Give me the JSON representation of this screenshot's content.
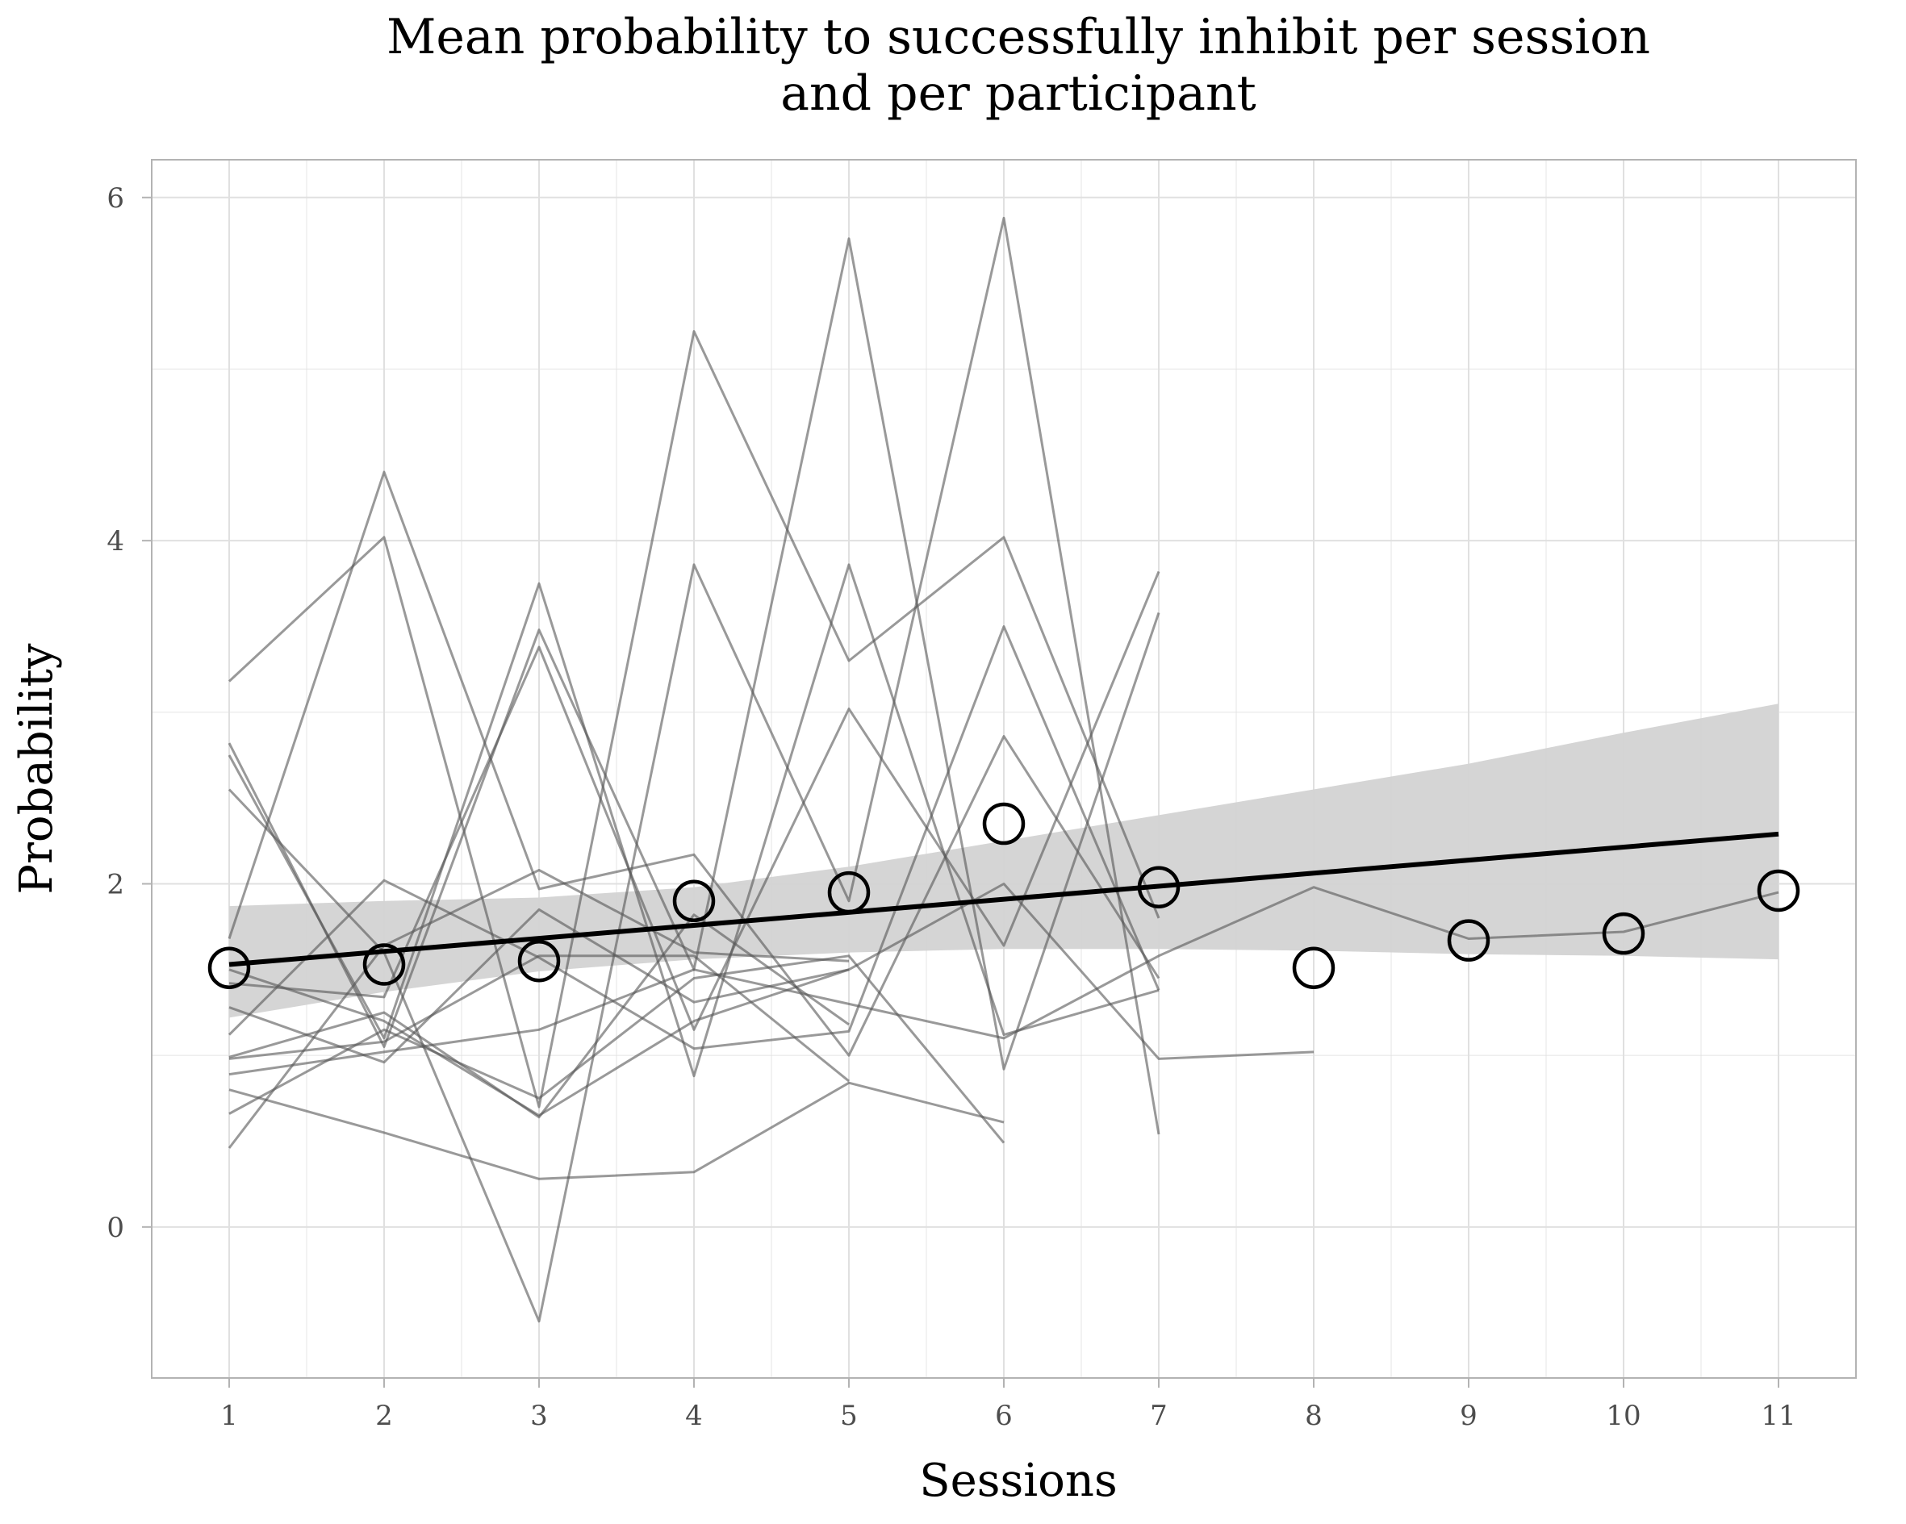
{
  "chart_data": {
    "type": "line",
    "title": "Mean probability to successfully inhibit per session\nand per participant",
    "title_lines": [
      "Mean probability to successfully inhibit per session",
      "and per participant"
    ],
    "xlabel": "Sessions",
    "ylabel": "Probability",
    "xlim": [
      0.5,
      11.5
    ],
    "ylim": [
      -0.88,
      6.22
    ],
    "x_ticks": [
      "1",
      "2",
      "3",
      "4",
      "5",
      "6",
      "7",
      "8",
      "9",
      "10",
      "11"
    ],
    "y_ticks": [
      "0",
      "2",
      "4",
      "6"
    ],
    "y_tick_values": [
      0,
      2,
      4,
      6
    ],
    "grid": true,
    "legend": "none",
    "colors": {
      "participant_line": "#555555",
      "trend_line": "#000000",
      "ci_band": "#d3d3d3",
      "mean_marker": "#000000",
      "grid": "#e0e0e0",
      "panel_border": "#b3b3b3"
    },
    "participants": [
      {
        "x": [
          1,
          2,
          3,
          4,
          5,
          6,
          7
        ],
        "y": [
          3.18,
          4.02,
          0.7,
          5.22,
          3.3,
          4.02,
          1.8
        ]
      },
      {
        "x": [
          1,
          2,
          3,
          4,
          5,
          6,
          7
        ],
        "y": [
          2.82,
          1.05,
          3.48,
          1.5,
          5.76,
          0.92,
          3.58
        ]
      },
      {
        "x": [
          1,
          2,
          3,
          4,
          5,
          6,
          7
        ],
        "y": [
          2.75,
          1.1,
          3.75,
          0.88,
          3.86,
          1.12,
          1.38
        ]
      },
      {
        "x": [
          1,
          2,
          3,
          4,
          5,
          6,
          7
        ],
        "y": [
          2.55,
          1.6,
          -0.55,
          3.86,
          1.9,
          5.88,
          0.54
        ]
      },
      {
        "x": [
          1,
          2,
          3,
          4,
          5,
          6,
          7
        ],
        "y": [
          1.68,
          4.4,
          1.97,
          2.17,
          1.0,
          2.86,
          1.45
        ]
      },
      {
        "x": [
          1,
          2,
          3,
          4,
          5,
          6,
          7
        ],
        "y": [
          1.42,
          1.34,
          3.38,
          1.15,
          3.02,
          1.64,
          3.82
        ]
      },
      {
        "x": [
          1,
          2,
          3,
          4,
          5,
          6,
          7
        ],
        "y": [
          1.12,
          2.02,
          1.57,
          1.04,
          1.14,
          3.5,
          1.38
        ]
      },
      {
        "x": [
          1,
          2,
          3,
          4,
          5
        ],
        "y": [
          1.28,
          0.96,
          1.85,
          1.31,
          1.5
        ]
      },
      {
        "x": [
          1,
          2,
          3,
          4,
          5
        ],
        "y": [
          0.99,
          1.25,
          0.64,
          1.82,
          1.18
        ]
      },
      {
        "x": [
          1,
          2,
          3,
          4,
          5
        ],
        "y": [
          0.98,
          1.08,
          1.58,
          1.58,
          0.85
        ]
      },
      {
        "x": [
          1,
          2,
          3,
          4,
          5
        ],
        "y": [
          0.46,
          1.64,
          2.08,
          1.6,
          1.55
        ]
      },
      {
        "x": [
          1,
          2,
          3,
          4,
          5,
          6
        ],
        "y": [
          0.8,
          0.55,
          0.28,
          0.32,
          0.84,
          0.61
        ]
      },
      {
        "x": [
          1,
          2,
          3,
          4,
          5,
          6
        ],
        "y": [
          0.66,
          1.15,
          0.75,
          1.45,
          1.58,
          0.49
        ]
      },
      {
        "x": [
          1,
          2,
          3,
          4,
          5,
          6,
          7,
          8,
          9,
          10,
          11
        ],
        "y": [
          0.89,
          1.02,
          1.15,
          1.5,
          1.3,
          1.1,
          1.58,
          1.98,
          1.68,
          1.72,
          1.95
        ]
      },
      {
        "x": [
          1,
          2,
          3,
          4,
          5,
          6,
          7,
          8
        ],
        "y": [
          1.5,
          1.2,
          0.65,
          1.2,
          1.5,
          2.0,
          0.98,
          1.02
        ]
      }
    ],
    "means": {
      "x": [
        1,
        2,
        3,
        4,
        5,
        6,
        7,
        8,
        9,
        10,
        11
      ],
      "y": [
        1.51,
        1.53,
        1.55,
        1.9,
        1.95,
        2.35,
        1.98,
        1.51,
        1.67,
        1.71,
        1.96
      ]
    },
    "trend": {
      "x": [
        1,
        11
      ],
      "y": [
        1.53,
        2.29
      ]
    },
    "ci_band": {
      "x": [
        1,
        2,
        3,
        4,
        5,
        6,
        7,
        8,
        9,
        10,
        11
      ],
      "lower": [
        1.22,
        1.37,
        1.49,
        1.56,
        1.6,
        1.62,
        1.62,
        1.61,
        1.59,
        1.58,
        1.56
      ],
      "upper": [
        1.87,
        1.9,
        1.92,
        1.98,
        2.1,
        2.25,
        2.4,
        2.55,
        2.7,
        2.88,
        3.05
      ]
    }
  }
}
